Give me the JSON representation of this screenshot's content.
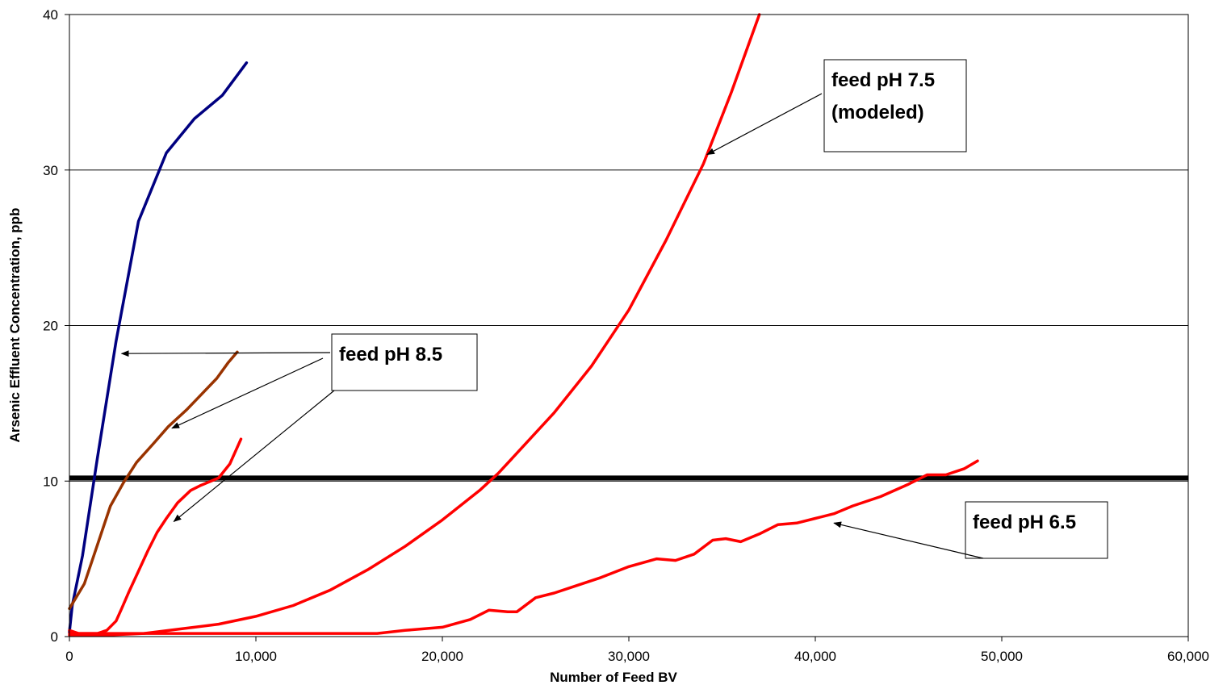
{
  "chart_data": {
    "type": "line",
    "title": "",
    "xlabel": "Number of Feed BV",
    "ylabel": "Arsenic Effluent Concentration, ppb",
    "xlim": [
      0,
      60000
    ],
    "ylim": [
      0,
      40
    ],
    "x_ticks": [
      0,
      10000,
      20000,
      30000,
      40000,
      50000,
      60000
    ],
    "x_tick_labels": [
      "0",
      "10,000",
      "20,000",
      "30,000",
      "40,000",
      "50,000",
      "60,000"
    ],
    "y_ticks": [
      0,
      10,
      20,
      30,
      40
    ],
    "y_tick_labels": [
      "0",
      "10",
      "20",
      "30",
      "40"
    ],
    "grid": "horizontal",
    "reference_line": {
      "y": 10.2,
      "color": "#000000"
    },
    "series": [
      {
        "color": "#000080",
        "x": [
          0,
          150,
          700,
          1500,
          2500,
          3700,
          5200,
          6700,
          8200,
          9500
        ],
        "y": [
          0.3,
          2.0,
          5.2,
          11.5,
          19.0,
          26.7,
          31.1,
          33.3,
          34.8,
          36.9
        ]
      },
      {
        "color": "#993300",
        "x": [
          0,
          800,
          1500,
          2200,
          2900,
          3600,
          4500,
          5300,
          6300,
          7100,
          7900,
          8500,
          9000
        ],
        "y": [
          1.8,
          3.4,
          5.9,
          8.4,
          9.9,
          11.2,
          12.4,
          13.5,
          14.6,
          15.6,
          16.6,
          17.6,
          18.3
        ]
      },
      {
        "color": "#ff0000",
        "x": [
          0,
          500,
          1000,
          1500,
          2000,
          2500,
          2800,
          3200,
          3700,
          4200,
          4700,
          5200,
          5800,
          6500,
          7000,
          8000,
          8600,
          9200
        ],
        "y": [
          0.4,
          0.2,
          0.2,
          0.2,
          0.4,
          1.0,
          1.8,
          2.9,
          4.2,
          5.5,
          6.7,
          7.6,
          8.6,
          9.4,
          9.7,
          10.2,
          11.1,
          12.7
        ]
      },
      {
        "color": "#ff0000",
        "x": [
          0,
          2000,
          4000,
          6000,
          8000,
          10000,
          12000,
          14000,
          16000,
          18000,
          20000,
          22000,
          23000,
          24000,
          26000,
          28000,
          30000,
          32000,
          34000,
          35500,
          37000
        ],
        "y": [
          0.1,
          0.1,
          0.2,
          0.5,
          0.8,
          1.3,
          2.0,
          3.0,
          4.3,
          5.8,
          7.5,
          9.4,
          10.5,
          11.8,
          14.4,
          17.4,
          21.0,
          25.5,
          30.4,
          35.0,
          40.0
        ]
      },
      {
        "color": "#ff0000",
        "x": [
          0,
          5000,
          10000,
          15000,
          16500,
          18000,
          20000,
          21500,
          22500,
          23500,
          24000,
          25000,
          26000,
          27000,
          28500,
          30000,
          31500,
          32500,
          33500,
          34500,
          35200,
          36000,
          37000,
          38000,
          39000,
          40000,
          41000,
          42000,
          43500,
          45000,
          46000,
          47000,
          48000,
          48700
        ],
        "y": [
          0.2,
          0.2,
          0.2,
          0.2,
          0.2,
          0.4,
          0.6,
          1.1,
          1.7,
          1.6,
          1.6,
          2.5,
          2.8,
          3.2,
          3.8,
          4.5,
          5.0,
          4.9,
          5.3,
          6.2,
          6.3,
          6.1,
          6.6,
          7.2,
          7.3,
          7.6,
          7.9,
          8.4,
          9.0,
          9.8,
          10.4,
          10.4,
          10.8,
          11.3
        ]
      }
    ],
    "annotations": [
      {
        "lines": [
          "feed pH 7.5",
          "(modeled)"
        ],
        "arrow_to": [
          34200,
          31.0
        ]
      },
      {
        "lines": [
          "feed pH 8.5"
        ],
        "arrow_to": [
          [
            2800,
            18.2
          ],
          [
            5500,
            13.4
          ],
          [
            5600,
            7.4
          ]
        ]
      },
      {
        "lines": [
          "feed pH 6.5"
        ],
        "arrow_to": [
          41000,
          7.3
        ]
      }
    ]
  }
}
